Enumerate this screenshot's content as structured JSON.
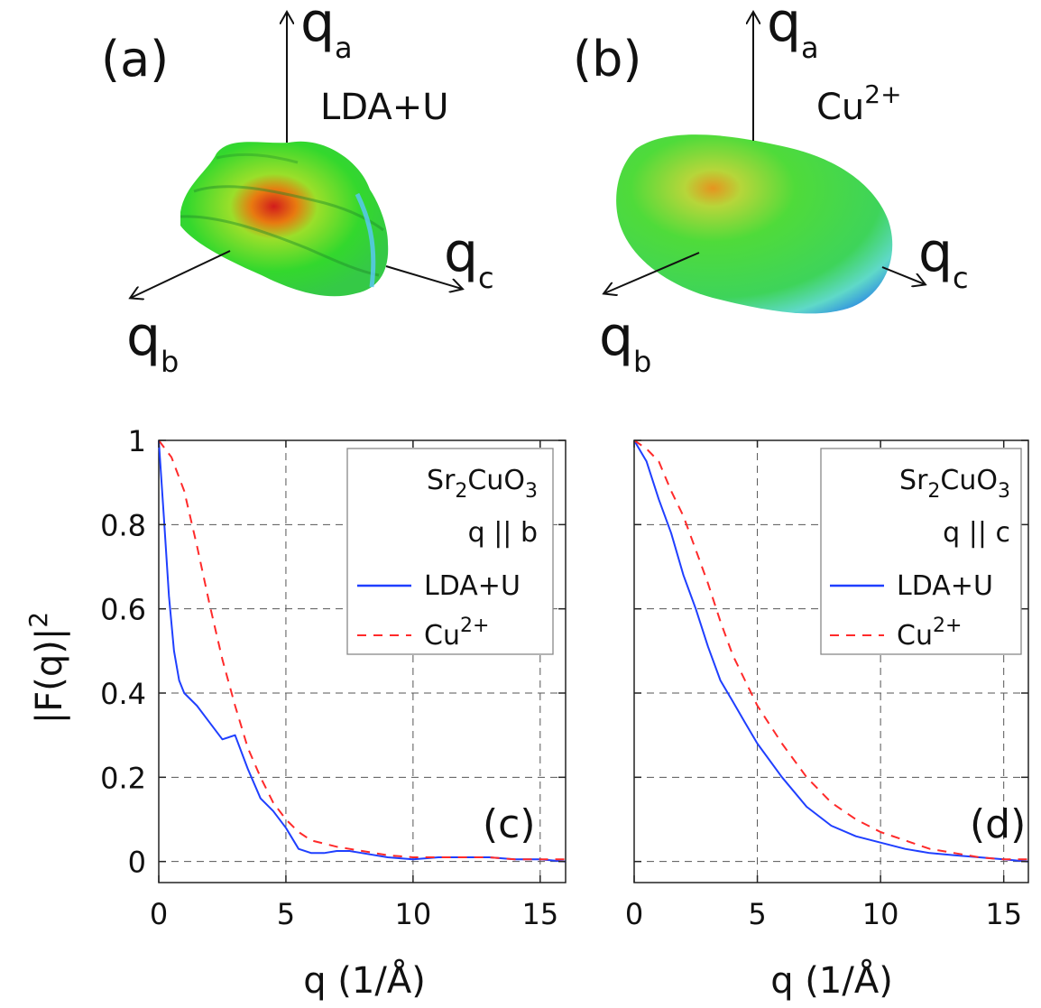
{
  "panels_3d": [
    {
      "label": "(a)",
      "note": "LDA+U",
      "axes": {
        "a": "a",
        "b": "b",
        "c": "c"
      }
    },
    {
      "label": "(b)",
      "note": "Cu",
      "note_sup": "2+",
      "axes": {
        "a": "a",
        "b": "b",
        "c": "c"
      }
    }
  ],
  "colors": {
    "ldau": "#1f3fff",
    "cu": "#ff2a2a",
    "grid": "#555555"
  },
  "chart_data": [
    {
      "type": "line",
      "panel": "(c)",
      "ylabel": "|F(q)|",
      "ylabel_sup": "2",
      "xlabel": "q (1/Å)",
      "xlim": [
        0,
        16
      ],
      "ylim": [
        -0.05,
        1
      ],
      "xticks": [
        "0",
        "5",
        "10",
        "15"
      ],
      "yticks": [
        "0",
        "0.2",
        "0.4",
        "0.6",
        "0.8",
        "1"
      ],
      "legend": {
        "compound_parts": [
          "Sr",
          "2",
          "CuO",
          "3"
        ],
        "direction": "q || b",
        "entries": [
          "LDA+U",
          "Cu"
        ],
        "entry_sup": "2+"
      },
      "series": [
        {
          "name": "LDA+U",
          "style": "solid",
          "x": [
            0,
            0.2,
            0.4,
            0.6,
            0.8,
            1.0,
            1.5,
            2.0,
            2.5,
            3.0,
            3.5,
            4.0,
            4.5,
            5.0,
            5.5,
            6.0,
            6.5,
            7.0,
            7.5,
            8.0,
            9.0,
            10.0,
            11.0,
            12.0,
            13.0,
            14.0,
            15.0,
            16.0
          ],
          "y": [
            1.0,
            0.82,
            0.63,
            0.5,
            0.43,
            0.4,
            0.37,
            0.33,
            0.29,
            0.3,
            0.22,
            0.15,
            0.12,
            0.08,
            0.03,
            0.02,
            0.02,
            0.025,
            0.025,
            0.02,
            0.01,
            0.005,
            0.01,
            0.01,
            0.01,
            0.005,
            0.005,
            0.0
          ]
        },
        {
          "name": "Cu2+",
          "style": "dashed",
          "x": [
            0,
            0.5,
            1.0,
            1.5,
            2.0,
            2.5,
            3.0,
            3.5,
            4.0,
            4.5,
            5.0,
            5.5,
            6.0,
            7.0,
            8.0,
            9.0,
            10.0,
            11.0,
            12.0,
            13.0,
            14.0,
            15.0,
            16.0
          ],
          "y": [
            1.0,
            0.96,
            0.88,
            0.75,
            0.61,
            0.48,
            0.37,
            0.27,
            0.2,
            0.14,
            0.1,
            0.07,
            0.05,
            0.035,
            0.025,
            0.015,
            0.01,
            0.01,
            0.01,
            0.01,
            0.005,
            0.005,
            0.005
          ]
        }
      ]
    },
    {
      "type": "line",
      "panel": "(d)",
      "xlabel": "q (1/Å)",
      "xlim": [
        0,
        16
      ],
      "ylim": [
        -0.05,
        1
      ],
      "xticks": [
        "0",
        "5",
        "10",
        "15"
      ],
      "legend": {
        "compound_parts": [
          "Sr",
          "2",
          "CuO",
          "3"
        ],
        "direction": "q || c",
        "entries": [
          "LDA+U",
          "Cu"
        ],
        "entry_sup": "2+"
      },
      "series": [
        {
          "name": "LDA+U",
          "style": "solid",
          "x": [
            0,
            0.5,
            1.0,
            1.5,
            2.0,
            2.5,
            3.0,
            3.5,
            4.0,
            4.5,
            5.0,
            6.0,
            7.0,
            8.0,
            9.0,
            10.0,
            11.0,
            12.0,
            13.0,
            14.0,
            15.0,
            16.0
          ],
          "y": [
            1.0,
            0.95,
            0.86,
            0.78,
            0.68,
            0.6,
            0.51,
            0.43,
            0.38,
            0.33,
            0.28,
            0.2,
            0.13,
            0.085,
            0.06,
            0.045,
            0.03,
            0.02,
            0.015,
            0.01,
            0.005,
            0.0
          ]
        },
        {
          "name": "Cu2+",
          "style": "dashed",
          "x": [
            0,
            0.5,
            1.0,
            1.5,
            2.0,
            2.5,
            3.0,
            3.5,
            4.0,
            4.5,
            5.0,
            6.0,
            7.0,
            8.0,
            9.0,
            10.0,
            11.0,
            12.0,
            13.0,
            14.0,
            15.0,
            16.0
          ],
          "y": [
            1.0,
            0.98,
            0.95,
            0.88,
            0.82,
            0.74,
            0.66,
            0.57,
            0.49,
            0.43,
            0.37,
            0.28,
            0.2,
            0.14,
            0.1,
            0.07,
            0.05,
            0.03,
            0.02,
            0.01,
            0.005,
            0.005
          ]
        }
      ]
    }
  ]
}
